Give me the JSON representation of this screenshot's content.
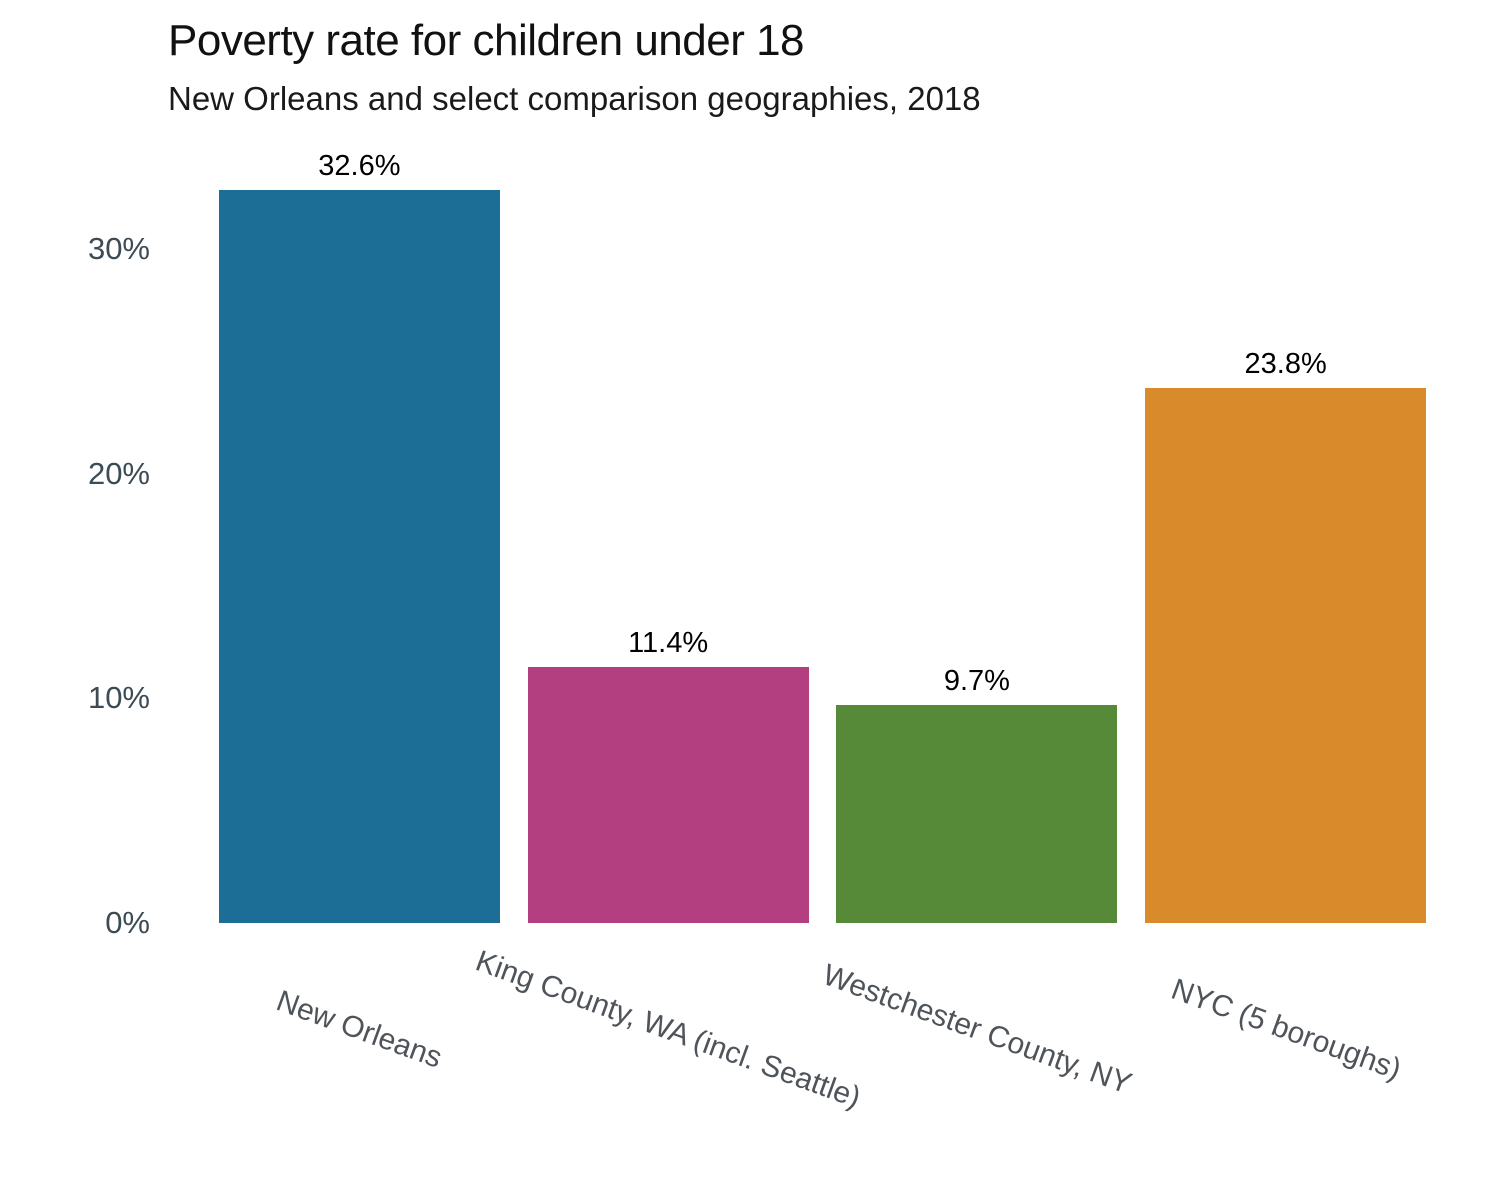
{
  "header": {
    "title": "Poverty rate for children under 18",
    "subtitle": "New Orleans and select comparison geographies, 2018"
  },
  "chart_data": {
    "type": "bar",
    "title": "Poverty rate for children under 18",
    "subtitle": "New Orleans and select comparison geographies, 2018",
    "categories": [
      "New Orleans",
      "King County, WA (incl. Seattle)",
      "Westchester County, NY",
      "NYC (5 boroughs)"
    ],
    "values": [
      32.6,
      11.4,
      9.7,
      23.8
    ],
    "value_labels": [
      "32.6%",
      "11.4%",
      "9.7%",
      "23.8%"
    ],
    "bar_colors": [
      "#1d6e96",
      "#b33f80",
      "#578a38",
      "#d98a2b"
    ],
    "xlabel": "",
    "ylabel": "",
    "ylim": [
      0,
      34.4
    ],
    "yticks": [
      0,
      10,
      20,
      30
    ],
    "ytick_labels": [
      "0%",
      "10%",
      "20%",
      "30%"
    ],
    "grid": false,
    "legend": false,
    "x_label_rotation_deg": 20,
    "background_color": "#ffffff",
    "value_label_color": "#000000",
    "ytick_color": "#3d4b55",
    "xtick_color": "#4e545a"
  }
}
